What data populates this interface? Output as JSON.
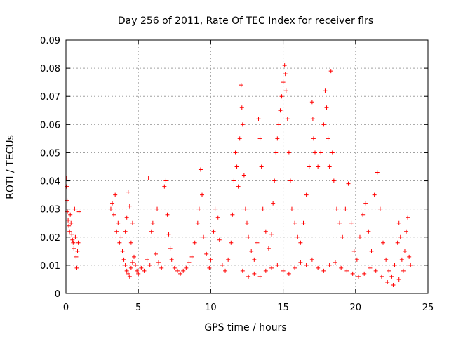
{
  "chart_data": {
    "type": "scatter",
    "title": "Day 256 of 2011, Rate Of TEC Index for receiver flrs",
    "xlabel": "GPS time / hours",
    "ylabel": "ROTI / TECUs",
    "xlim": [
      0,
      25
    ],
    "ylim": [
      0,
      0.09
    ],
    "xticks": [
      0,
      5,
      10,
      15,
      20,
      25
    ],
    "xtick_labels": [
      "0",
      "5",
      "10",
      "15",
      "20",
      "25"
    ],
    "yticks": [
      0,
      0.01,
      0.02,
      0.03,
      0.04,
      0.05,
      0.06,
      0.07,
      0.08,
      0.09
    ],
    "ytick_labels": [
      "0",
      "0.01",
      "0.02",
      "0.03",
      "0.04",
      "0.05",
      "0.06",
      "0.07",
      "0.08",
      "0.09"
    ],
    "grid": true,
    "marker": "+",
    "color": "#ff0000",
    "series": [
      {
        "points": [
          [
            0.02,
            0.041
          ],
          [
            0.05,
            0.038
          ],
          [
            0.08,
            0.033
          ],
          [
            0.1,
            0.029
          ],
          [
            0.15,
            0.026
          ],
          [
            0.2,
            0.024
          ],
          [
            0.25,
            0.022
          ],
          [
            0.3,
            0.028
          ],
          [
            0.35,
            0.025
          ],
          [
            0.4,
            0.021
          ],
          [
            0.45,
            0.019
          ],
          [
            0.5,
            0.018
          ],
          [
            0.55,
            0.016
          ],
          [
            0.6,
            0.03
          ],
          [
            0.65,
            0.02
          ],
          [
            0.7,
            0.013
          ],
          [
            0.75,
            0.009
          ],
          [
            0.8,
            0.015
          ],
          [
            0.85,
            0.018
          ],
          [
            0.9,
            0.029
          ],
          [
            3.1,
            0.03
          ],
          [
            3.2,
            0.032
          ],
          [
            3.3,
            0.028
          ],
          [
            3.4,
            0.035
          ],
          [
            3.5,
            0.022
          ],
          [
            3.6,
            0.025
          ],
          [
            3.7,
            0.018
          ],
          [
            3.8,
            0.02
          ],
          [
            3.9,
            0.015
          ],
          [
            4.0,
            0.012
          ],
          [
            4.1,
            0.01
          ],
          [
            4.2,
            0.008
          ],
          [
            4.3,
            0.007
          ],
          [
            4.4,
            0.006
          ],
          [
            4.5,
            0.009
          ],
          [
            4.6,
            0.011
          ],
          [
            4.7,
            0.013
          ],
          [
            4.8,
            0.01
          ],
          [
            4.9,
            0.008
          ],
          [
            5.0,
            0.007
          ],
          [
            4.3,
            0.036
          ],
          [
            4.4,
            0.031
          ],
          [
            4.6,
            0.025
          ],
          [
            4.2,
            0.027
          ],
          [
            4.1,
            0.022
          ],
          [
            4.5,
            0.018
          ],
          [
            5.2,
            0.009
          ],
          [
            5.4,
            0.008
          ],
          [
            5.6,
            0.012
          ],
          [
            5.8,
            0.01
          ],
          [
            5.7,
            0.041
          ],
          [
            5.9,
            0.022
          ],
          [
            6.0,
            0.025
          ],
          [
            6.2,
            0.014
          ],
          [
            6.3,
            0.03
          ],
          [
            6.4,
            0.011
          ],
          [
            6.6,
            0.009
          ],
          [
            6.8,
            0.038
          ],
          [
            6.9,
            0.04
          ],
          [
            7.0,
            0.028
          ],
          [
            7.1,
            0.021
          ],
          [
            7.2,
            0.016
          ],
          [
            7.3,
            0.012
          ],
          [
            7.5,
            0.009
          ],
          [
            7.7,
            0.008
          ],
          [
            7.9,
            0.007
          ],
          [
            8.1,
            0.008
          ],
          [
            8.3,
            0.009
          ],
          [
            8.5,
            0.011
          ],
          [
            8.7,
            0.013
          ],
          [
            8.9,
            0.018
          ],
          [
            9.1,
            0.025
          ],
          [
            9.2,
            0.03
          ],
          [
            9.3,
            0.044
          ],
          [
            9.4,
            0.035
          ],
          [
            9.5,
            0.02
          ],
          [
            9.7,
            0.014
          ],
          [
            9.9,
            0.009
          ],
          [
            10.0,
            0.012
          ],
          [
            10.2,
            0.022
          ],
          [
            10.3,
            0.03
          ],
          [
            10.5,
            0.027
          ],
          [
            10.6,
            0.019
          ],
          [
            10.8,
            0.01
          ],
          [
            11.0,
            0.008
          ],
          [
            11.2,
            0.012
          ],
          [
            11.4,
            0.018
          ],
          [
            11.5,
            0.028
          ],
          [
            11.6,
            0.04
          ],
          [
            11.7,
            0.05
          ],
          [
            11.8,
            0.045
          ],
          [
            11.9,
            0.038
          ],
          [
            12.0,
            0.055
          ],
          [
            12.1,
            0.074
          ],
          [
            12.15,
            0.066
          ],
          [
            12.2,
            0.06
          ],
          [
            12.3,
            0.042
          ],
          [
            12.4,
            0.03
          ],
          [
            12.5,
            0.025
          ],
          [
            12.6,
            0.02
          ],
          [
            12.8,
            0.015
          ],
          [
            13.0,
            0.012
          ],
          [
            13.2,
            0.018
          ],
          [
            13.3,
            0.062
          ],
          [
            13.4,
            0.055
          ],
          [
            13.5,
            0.045
          ],
          [
            13.6,
            0.03
          ],
          [
            13.8,
            0.022
          ],
          [
            14.0,
            0.016
          ],
          [
            14.2,
            0.021
          ],
          [
            14.3,
            0.032
          ],
          [
            14.4,
            0.04
          ],
          [
            14.5,
            0.05
          ],
          [
            14.6,
            0.055
          ],
          [
            14.7,
            0.06
          ],
          [
            14.8,
            0.065
          ],
          [
            14.9,
            0.07
          ],
          [
            15.0,
            0.075
          ],
          [
            15.1,
            0.081
          ],
          [
            15.15,
            0.078
          ],
          [
            15.2,
            0.072
          ],
          [
            15.3,
            0.062
          ],
          [
            15.4,
            0.05
          ],
          [
            15.5,
            0.04
          ],
          [
            15.6,
            0.03
          ],
          [
            15.8,
            0.025
          ],
          [
            16.0,
            0.02
          ],
          [
            16.2,
            0.018
          ],
          [
            16.4,
            0.025
          ],
          [
            16.6,
            0.035
          ],
          [
            16.8,
            0.045
          ],
          [
            17.0,
            0.068
          ],
          [
            17.05,
            0.062
          ],
          [
            17.1,
            0.055
          ],
          [
            17.2,
            0.05
          ],
          [
            17.4,
            0.045
          ],
          [
            17.6,
            0.05
          ],
          [
            17.8,
            0.06
          ],
          [
            17.9,
            0.072
          ],
          [
            18.0,
            0.066
          ],
          [
            18.1,
            0.055
          ],
          [
            18.2,
            0.045
          ],
          [
            18.3,
            0.079
          ],
          [
            18.4,
            0.05
          ],
          [
            18.5,
            0.04
          ],
          [
            18.7,
            0.03
          ],
          [
            18.9,
            0.025
          ],
          [
            19.1,
            0.02
          ],
          [
            19.3,
            0.03
          ],
          [
            19.5,
            0.039
          ],
          [
            19.7,
            0.025
          ],
          [
            19.9,
            0.015
          ],
          [
            20.1,
            0.012
          ],
          [
            20.3,
            0.02
          ],
          [
            20.5,
            0.028
          ],
          [
            20.7,
            0.032
          ],
          [
            20.9,
            0.022
          ],
          [
            21.1,
            0.015
          ],
          [
            21.3,
            0.035
          ],
          [
            21.5,
            0.043
          ],
          [
            21.7,
            0.03
          ],
          [
            21.9,
            0.018
          ],
          [
            22.1,
            0.012
          ],
          [
            22.3,
            0.008
          ],
          [
            22.5,
            0.006
          ],
          [
            22.7,
            0.01
          ],
          [
            22.9,
            0.018
          ],
          [
            23.0,
            0.025
          ],
          [
            23.1,
            0.02
          ],
          [
            23.2,
            0.012
          ],
          [
            23.3,
            0.008
          ],
          [
            23.4,
            0.015
          ],
          [
            23.5,
            0.022
          ],
          [
            23.6,
            0.027
          ],
          [
            23.7,
            0.013
          ],
          [
            23.8,
            0.01
          ],
          [
            12.2,
            0.008
          ],
          [
            12.6,
            0.006
          ],
          [
            13.0,
            0.007
          ],
          [
            13.4,
            0.006
          ],
          [
            13.8,
            0.008
          ],
          [
            14.2,
            0.009
          ],
          [
            14.6,
            0.01
          ],
          [
            15.0,
            0.008
          ],
          [
            15.4,
            0.007
          ],
          [
            15.8,
            0.009
          ],
          [
            16.2,
            0.011
          ],
          [
            16.6,
            0.01
          ],
          [
            17.0,
            0.012
          ],
          [
            17.4,
            0.009
          ],
          [
            17.8,
            0.008
          ],
          [
            18.2,
            0.01
          ],
          [
            18.6,
            0.011
          ],
          [
            19.0,
            0.009
          ],
          [
            19.4,
            0.008
          ],
          [
            19.8,
            0.007
          ],
          [
            20.2,
            0.006
          ],
          [
            20.6,
            0.007
          ],
          [
            21.0,
            0.009
          ],
          [
            21.4,
            0.008
          ],
          [
            21.8,
            0.006
          ],
          [
            22.2,
            0.004
          ],
          [
            22.6,
            0.003
          ],
          [
            23.0,
            0.005
          ]
        ]
      }
    ]
  }
}
